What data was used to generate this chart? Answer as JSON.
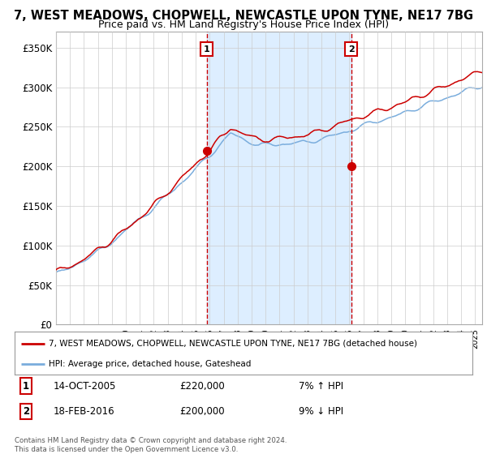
{
  "title": "7, WEST MEADOWS, CHOPWELL, NEWCASTLE UPON TYNE, NE17 7BG",
  "subtitle": "Price paid vs. HM Land Registry's House Price Index (HPI)",
  "ylabel_ticks": [
    "£0",
    "£50K",
    "£100K",
    "£150K",
    "£200K",
    "£250K",
    "£300K",
    "£350K"
  ],
  "ytick_vals": [
    0,
    50000,
    100000,
    150000,
    200000,
    250000,
    300000,
    350000
  ],
  "ylim": [
    0,
    370000
  ],
  "xlim_start": 1995.0,
  "xlim_end": 2025.5,
  "sale1_x": 2005.79,
  "sale1_y": 220000,
  "sale1_label": "1",
  "sale2_x": 2016.13,
  "sale2_y": 200000,
  "sale2_label": "2",
  "sale_color": "#cc0000",
  "hpi_color": "#7aaddd",
  "shade_color": "#ddeeff",
  "legend_sale": "7, WEST MEADOWS, CHOPWELL, NEWCASTLE UPON TYNE, NE17 7BG (detached house)",
  "legend_hpi": "HPI: Average price, detached house, Gateshead",
  "annotation1_date": "14-OCT-2005",
  "annotation1_price": "£220,000",
  "annotation1_hpi": "7% ↑ HPI",
  "annotation2_date": "18-FEB-2016",
  "annotation2_price": "£200,000",
  "annotation2_hpi": "9% ↓ HPI",
  "footer": "Contains HM Land Registry data © Crown copyright and database right 2024.\nThis data is licensed under the Open Government Licence v3.0.",
  "bg_color": "#ffffff",
  "grid_color": "#cccccc"
}
